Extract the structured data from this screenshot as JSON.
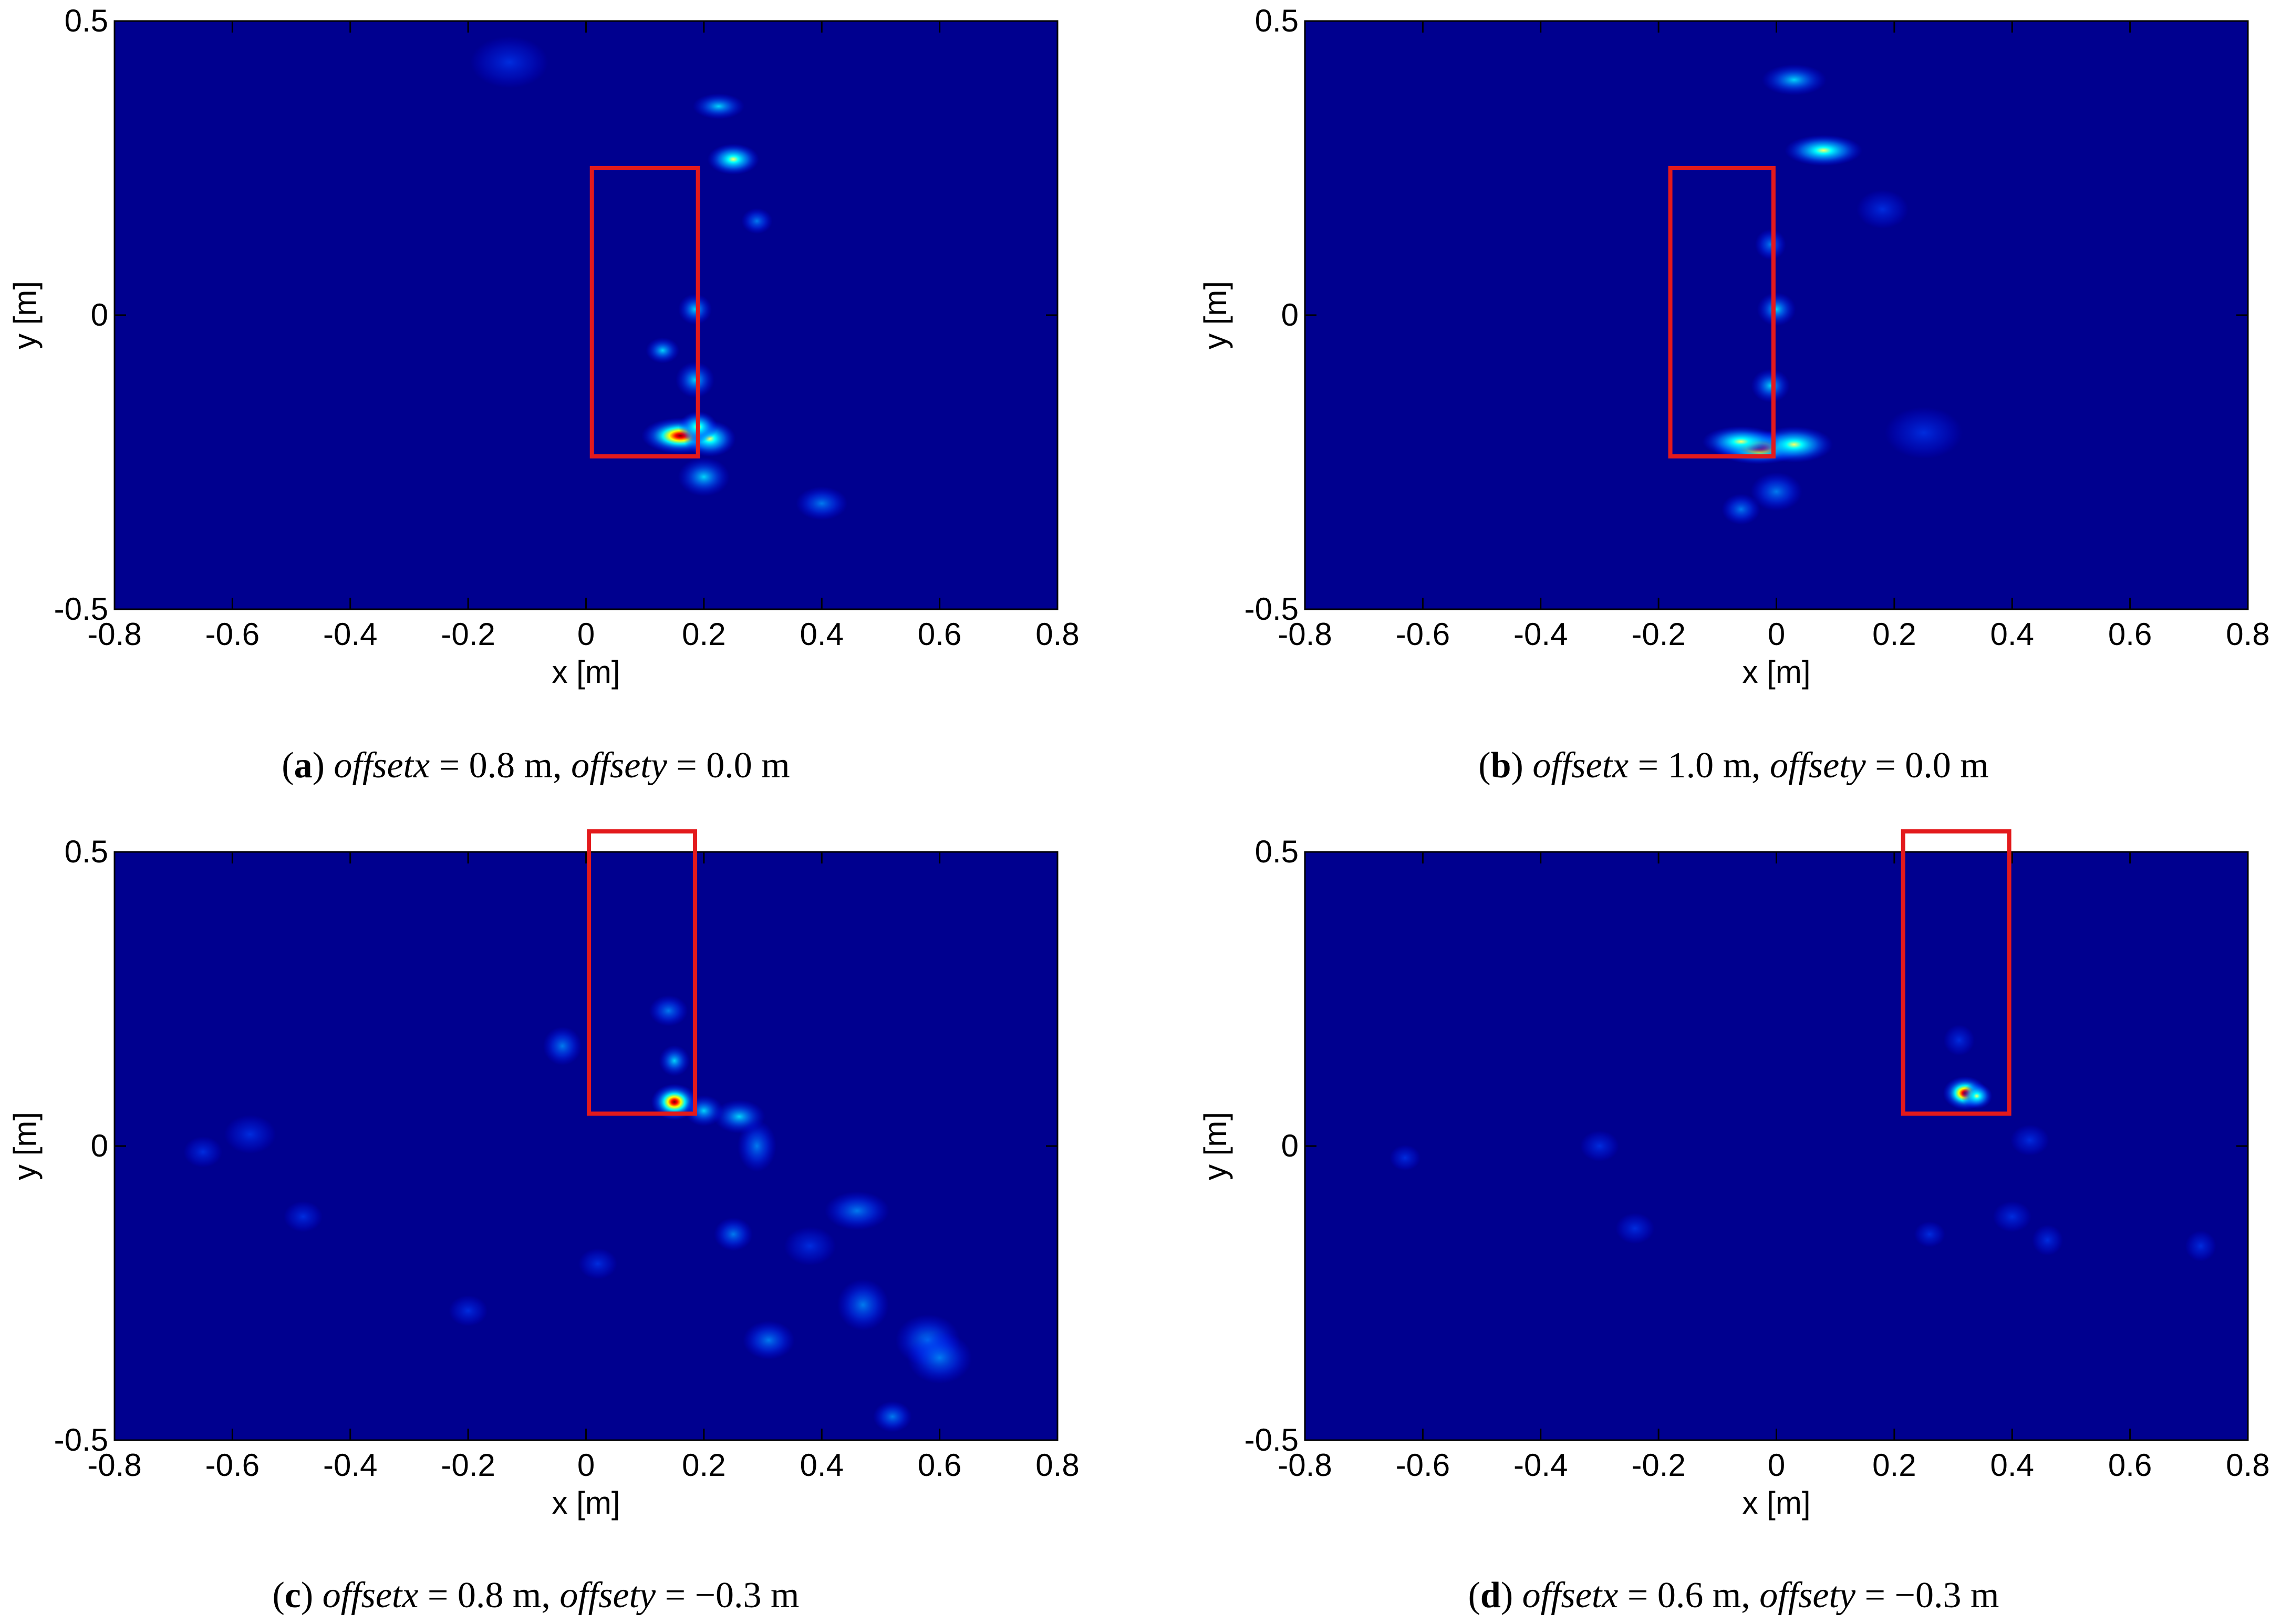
{
  "colors": {
    "colormap": [
      "#000080",
      "#0000ff",
      "#00ffff",
      "#ffff00",
      "#ff0000",
      "#800000"
    ],
    "box": "#e31a1c",
    "axis": "#000000",
    "background": "#00008f"
  },
  "chart_data": [
    {
      "type": "heatmap",
      "panel": "a",
      "xlabel": "x [m]",
      "ylabel": "y [m]",
      "xlim": [
        -0.8,
        0.8
      ],
      "ylim": [
        -0.5,
        0.5
      ],
      "xticks": [
        "-0.8",
        "-0.6",
        "-0.4",
        "-0.2",
        "0",
        "0.2",
        "0.4",
        "0.6",
        "0.8"
      ],
      "yticks": [
        "-0.5",
        "0",
        "0.5"
      ],
      "caption": {
        "letter": "a",
        "t1": "offsetx",
        "t2": " = 0.8 m, ",
        "t3": "offsety",
        "t4": " = 0.0 m"
      },
      "box": {
        "x0": 0.01,
        "x1": 0.19,
        "y0": -0.24,
        "y1": 0.25
      },
      "hotspots": [
        {
          "x": 0.16,
          "y": -0.205,
          "sx": 0.03,
          "sy": 0.014,
          "v": 1.0
        },
        {
          "x": 0.21,
          "y": -0.21,
          "sx": 0.02,
          "sy": 0.014,
          "v": 0.55
        },
        {
          "x": 0.19,
          "y": -0.19,
          "sx": 0.015,
          "sy": 0.012,
          "v": 0.5
        },
        {
          "x": 0.185,
          "y": -0.11,
          "sx": 0.015,
          "sy": 0.014,
          "v": 0.4
        },
        {
          "x": 0.13,
          "y": -0.06,
          "sx": 0.013,
          "sy": 0.01,
          "v": 0.4
        },
        {
          "x": 0.185,
          "y": 0.01,
          "sx": 0.013,
          "sy": 0.012,
          "v": 0.3
        },
        {
          "x": 0.25,
          "y": 0.265,
          "sx": 0.02,
          "sy": 0.012,
          "v": 0.5
        },
        {
          "x": 0.225,
          "y": 0.355,
          "sx": 0.02,
          "sy": 0.01,
          "v": 0.3
        },
        {
          "x": 0.2,
          "y": -0.275,
          "sx": 0.02,
          "sy": 0.015,
          "v": 0.25
        },
        {
          "x": 0.4,
          "y": -0.32,
          "sx": 0.02,
          "sy": 0.013,
          "v": 0.22
        },
        {
          "x": 0.29,
          "y": 0.16,
          "sx": 0.012,
          "sy": 0.01,
          "v": 0.2
        },
        {
          "x": -0.13,
          "y": 0.43,
          "sx": 0.03,
          "sy": 0.02,
          "v": 0.12
        }
      ]
    },
    {
      "type": "heatmap",
      "panel": "b",
      "xlabel": "x [m]",
      "ylabel": "y [m]",
      "xlim": [
        -0.8,
        0.8
      ],
      "ylim": [
        -0.5,
        0.5
      ],
      "xticks": [
        "-0.8",
        "-0.6",
        "-0.4",
        "-0.2",
        "0",
        "0.2",
        "0.4",
        "0.6",
        "0.8"
      ],
      "yticks": [
        "-0.5",
        "0",
        "0.5"
      ],
      "caption": {
        "letter": "b",
        "t1": "offsetx",
        "t2": " = 1.0 m, ",
        "t3": "offsety",
        "t4": " = 0.0 m"
      },
      "box": {
        "x0": -0.18,
        "x1": -0.005,
        "y0": -0.24,
        "y1": 0.25
      },
      "hotspots": [
        {
          "x": -0.03,
          "y": -0.225,
          "sx": 0.035,
          "sy": 0.013,
          "v": 1.0
        },
        {
          "x": 0.03,
          "y": -0.22,
          "sx": 0.03,
          "sy": 0.014,
          "v": 0.55
        },
        {
          "x": -0.06,
          "y": -0.215,
          "sx": 0.03,
          "sy": 0.012,
          "v": 0.5
        },
        {
          "x": -0.01,
          "y": -0.12,
          "sx": 0.015,
          "sy": 0.013,
          "v": 0.3
        },
        {
          "x": 0.0,
          "y": 0.01,
          "sx": 0.015,
          "sy": 0.013,
          "v": 0.3
        },
        {
          "x": -0.01,
          "y": 0.12,
          "sx": 0.012,
          "sy": 0.012,
          "v": 0.2
        },
        {
          "x": 0.08,
          "y": 0.28,
          "sx": 0.03,
          "sy": 0.012,
          "v": 0.45
        },
        {
          "x": 0.03,
          "y": 0.4,
          "sx": 0.025,
          "sy": 0.012,
          "v": 0.25
        },
        {
          "x": 0.0,
          "y": -0.3,
          "sx": 0.02,
          "sy": 0.015,
          "v": 0.2
        },
        {
          "x": -0.06,
          "y": -0.33,
          "sx": 0.015,
          "sy": 0.012,
          "v": 0.18
        },
        {
          "x": 0.18,
          "y": 0.18,
          "sx": 0.02,
          "sy": 0.015,
          "v": 0.12
        },
        {
          "x": 0.25,
          "y": -0.2,
          "sx": 0.03,
          "sy": 0.02,
          "v": 0.1
        }
      ]
    },
    {
      "type": "heatmap",
      "panel": "c",
      "xlabel": "x [m]",
      "ylabel": "y [m]",
      "xlim": [
        -0.8,
        0.8
      ],
      "ylim": [
        -0.5,
        0.5
      ],
      "xticks": [
        "-0.8",
        "-0.6",
        "-0.4",
        "-0.2",
        "0",
        "0.2",
        "0.4",
        "0.6",
        "0.8"
      ],
      "yticks": [
        "-0.5",
        "0",
        "0.5"
      ],
      "caption": {
        "letter": "c",
        "t1": "offsetx",
        "t2": " = 0.8 m, ",
        "t3": "offsety",
        "t4": " = −0.3 m"
      },
      "box": {
        "x0": 0.005,
        "x1": 0.185,
        "y0": 0.055,
        "y1": 0.535
      },
      "hotspots": [
        {
          "x": 0.15,
          "y": 0.075,
          "sx": 0.018,
          "sy": 0.014,
          "v": 1.0
        },
        {
          "x": 0.26,
          "y": 0.05,
          "sx": 0.02,
          "sy": 0.013,
          "v": 0.35
        },
        {
          "x": 0.2,
          "y": 0.06,
          "sx": 0.015,
          "sy": 0.012,
          "v": 0.3
        },
        {
          "x": 0.15,
          "y": 0.145,
          "sx": 0.012,
          "sy": 0.012,
          "v": 0.25
        },
        {
          "x": 0.14,
          "y": 0.23,
          "sx": 0.015,
          "sy": 0.012,
          "v": 0.2
        },
        {
          "x": -0.04,
          "y": 0.17,
          "sx": 0.015,
          "sy": 0.015,
          "v": 0.18
        },
        {
          "x": 0.29,
          "y": 0.0,
          "sx": 0.015,
          "sy": 0.02,
          "v": 0.2
        },
        {
          "x": 0.46,
          "y": -0.11,
          "sx": 0.025,
          "sy": 0.015,
          "v": 0.22
        },
        {
          "x": 0.47,
          "y": -0.27,
          "sx": 0.02,
          "sy": 0.02,
          "v": 0.22
        },
        {
          "x": 0.58,
          "y": -0.33,
          "sx": 0.025,
          "sy": 0.02,
          "v": 0.24
        },
        {
          "x": 0.6,
          "y": -0.36,
          "sx": 0.025,
          "sy": 0.02,
          "v": 0.2
        },
        {
          "x": 0.25,
          "y": -0.15,
          "sx": 0.015,
          "sy": 0.013,
          "v": 0.15
        },
        {
          "x": 0.38,
          "y": -0.17,
          "sx": 0.02,
          "sy": 0.015,
          "v": 0.14
        },
        {
          "x": 0.31,
          "y": -0.33,
          "sx": 0.02,
          "sy": 0.015,
          "v": 0.15
        },
        {
          "x": 0.52,
          "y": -0.46,
          "sx": 0.015,
          "sy": 0.012,
          "v": 0.15
        },
        {
          "x": -0.48,
          "y": -0.12,
          "sx": 0.015,
          "sy": 0.012,
          "v": 0.12
        },
        {
          "x": -0.57,
          "y": 0.02,
          "sx": 0.02,
          "sy": 0.015,
          "v": 0.1
        },
        {
          "x": -0.65,
          "y": -0.01,
          "sx": 0.015,
          "sy": 0.012,
          "v": 0.09
        },
        {
          "x": -0.2,
          "y": -0.28,
          "sx": 0.015,
          "sy": 0.012,
          "v": 0.1
        },
        {
          "x": 0.02,
          "y": -0.2,
          "sx": 0.015,
          "sy": 0.012,
          "v": 0.08
        }
      ]
    },
    {
      "type": "heatmap",
      "panel": "d",
      "xlabel": "x [m]",
      "ylabel": "y [m]",
      "xlim": [
        -0.8,
        0.8
      ],
      "ylim": [
        -0.5,
        0.5
      ],
      "xticks": [
        "-0.8",
        "-0.6",
        "-0.4",
        "-0.2",
        "0",
        "0.2",
        "0.4",
        "0.6",
        "0.8"
      ],
      "yticks": [
        "-0.5",
        "0",
        "0.5"
      ],
      "caption": {
        "letter": "d",
        "t1": "offsetx",
        "t2": " = 0.6 m, ",
        "t3": "offsety",
        "t4": " = −0.3 m"
      },
      "box": {
        "x0": 0.215,
        "x1": 0.395,
        "y0": 0.055,
        "y1": 0.535
      },
      "hotspots": [
        {
          "x": 0.32,
          "y": 0.09,
          "sx": 0.017,
          "sy": 0.013,
          "v": 1.0
        },
        {
          "x": 0.34,
          "y": 0.085,
          "sx": 0.012,
          "sy": 0.01,
          "v": 0.5
        },
        {
          "x": 0.31,
          "y": 0.18,
          "sx": 0.012,
          "sy": 0.012,
          "v": 0.12
        },
        {
          "x": 0.43,
          "y": 0.01,
          "sx": 0.015,
          "sy": 0.012,
          "v": 0.12
        },
        {
          "x": 0.4,
          "y": -0.12,
          "sx": 0.015,
          "sy": 0.012,
          "v": 0.1
        },
        {
          "x": 0.46,
          "y": -0.16,
          "sx": 0.012,
          "sy": 0.012,
          "v": 0.1
        },
        {
          "x": 0.26,
          "y": -0.15,
          "sx": 0.012,
          "sy": 0.01,
          "v": 0.09
        },
        {
          "x": -0.24,
          "y": -0.14,
          "sx": 0.015,
          "sy": 0.012,
          "v": 0.1
        },
        {
          "x": -0.3,
          "y": 0.0,
          "sx": 0.015,
          "sy": 0.012,
          "v": 0.09
        },
        {
          "x": -0.63,
          "y": -0.02,
          "sx": 0.012,
          "sy": 0.01,
          "v": 0.08
        },
        {
          "x": 0.72,
          "y": -0.17,
          "sx": 0.012,
          "sy": 0.012,
          "v": 0.08
        }
      ]
    }
  ]
}
